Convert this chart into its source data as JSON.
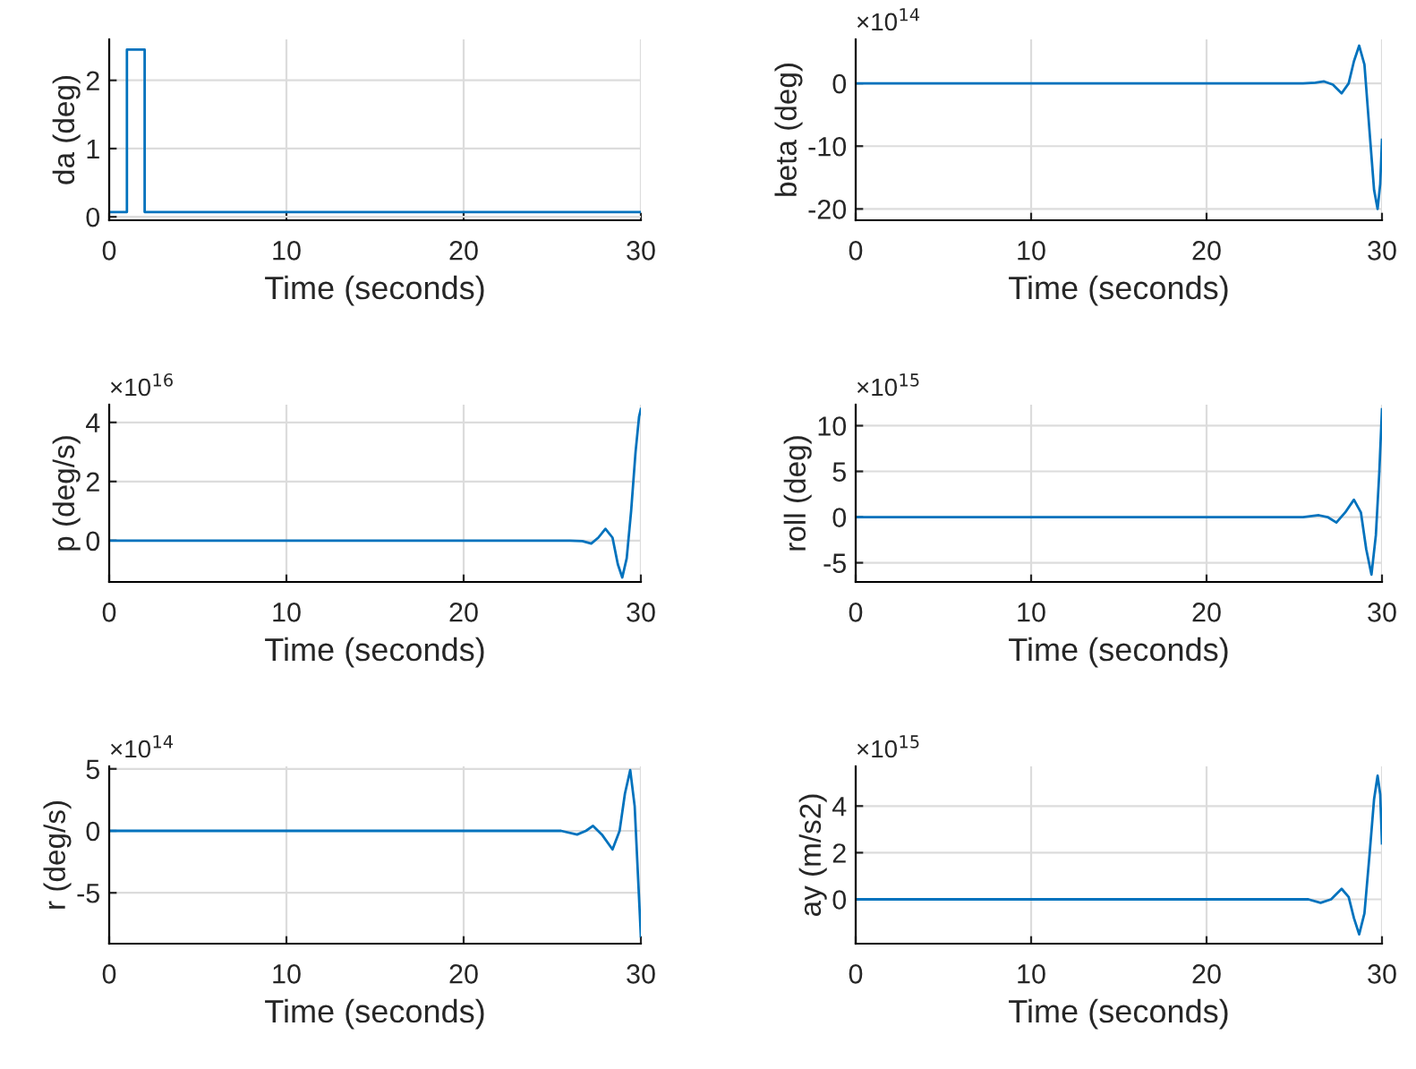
{
  "chart_data": [
    {
      "type": "line",
      "xlabel": "Time (seconds)",
      "ylabel": "da (deg)",
      "xlim": [
        0,
        30
      ],
      "xticks": [
        0,
        10,
        20,
        30
      ],
      "ylim": [
        -0.05,
        2.6
      ],
      "yticks": [
        0,
        1,
        2
      ],
      "grid": true,
      "x": [
        0,
        1,
        1,
        2,
        2,
        30
      ],
      "series": [
        {
          "color": "#0072bd",
          "values": [
            0.07,
            0.07,
            2.45,
            2.45,
            0.07,
            0.07
          ]
        }
      ]
    },
    {
      "type": "line",
      "xlabel": "Time (seconds)",
      "ylabel": "beta (deg)",
      "xlim": [
        0,
        30
      ],
      "xticks": [
        0,
        10,
        20,
        30
      ],
      "ylim": [
        -21.8,
        7
      ],
      "yticks": [
        -20,
        -10,
        0
      ],
      "grid": true,
      "annotations": [
        "×10$^{14}$"
      ],
      "x": [
        0,
        25.5,
        26.2,
        26.7,
        27.2,
        27.7,
        28.1,
        28.4,
        28.7,
        29.0,
        29.3,
        29.55,
        29.75,
        29.9,
        30
      ],
      "series": [
        {
          "color": "#0072bd",
          "values": [
            0,
            0,
            0.1,
            0.3,
            -0.2,
            -1.6,
            0,
            3.5,
            6,
            3,
            -8,
            -17,
            -20,
            -16,
            -9
          ]
        }
      ]
    },
    {
      "type": "line",
      "xlabel": "Time (seconds)",
      "ylabel": "p (deg/s)",
      "xlim": [
        0,
        30
      ],
      "xticks": [
        0,
        10,
        20,
        30
      ],
      "ylim": [
        -1.4,
        4.6
      ],
      "yticks": [
        0,
        2,
        4
      ],
      "grid": true,
      "annotations": [
        "×10$^{16}$"
      ],
      "x": [
        0,
        26,
        26.7,
        27.2,
        27.6,
        28.0,
        28.4,
        28.7,
        28.95,
        29.2,
        29.45,
        29.7,
        29.9,
        30
      ],
      "series": [
        {
          "color": "#0072bd",
          "values": [
            0,
            0,
            -0.02,
            -0.1,
            0.1,
            0.4,
            0.1,
            -0.8,
            -1.25,
            -0.6,
            1.0,
            3.0,
            4.2,
            4.45
          ]
        }
      ]
    },
    {
      "type": "line",
      "xlabel": "Time (seconds)",
      "ylabel": "roll (deg)",
      "xlim": [
        0,
        30
      ],
      "xticks": [
        0,
        10,
        20,
        30
      ],
      "ylim": [
        -7.1,
        12.3
      ],
      "yticks": [
        -5,
        0,
        5,
        10
      ],
      "grid": true,
      "annotations": [
        "×10$^{15}$"
      ],
      "x": [
        0,
        25.5,
        26.4,
        26.9,
        27.4,
        27.9,
        28.4,
        28.8,
        29.1,
        29.4,
        29.65,
        29.85,
        30
      ],
      "series": [
        {
          "color": "#0072bd",
          "values": [
            0,
            0,
            0.2,
            0,
            -0.6,
            0.5,
            1.9,
            0.5,
            -3.5,
            -6.3,
            -2,
            5,
            11.8
          ]
        }
      ]
    },
    {
      "type": "line",
      "xlabel": "Time (seconds)",
      "ylabel": "r (deg/s)",
      "xlim": [
        0,
        30
      ],
      "xticks": [
        0,
        10,
        20,
        30
      ],
      "ylim": [
        -9.1,
        5.2
      ],
      "yticks": [
        -5,
        0,
        5
      ],
      "grid": true,
      "annotations": [
        "×10$^{14}$"
      ],
      "x": [
        0,
        25.5,
        26.4,
        26.9,
        27.3,
        27.8,
        28.4,
        28.8,
        29.1,
        29.4,
        29.65,
        29.85,
        30
      ],
      "series": [
        {
          "color": "#0072bd",
          "values": [
            0,
            0,
            -0.3,
            0,
            0.4,
            -0.3,
            -1.5,
            0,
            3,
            4.9,
            2,
            -4,
            -8.5
          ]
        }
      ]
    },
    {
      "type": "line",
      "xlabel": "Time (seconds)",
      "ylabel": "ay (m/s2)",
      "xlim": [
        0,
        30
      ],
      "xticks": [
        0,
        10,
        20,
        30
      ],
      "ylim": [
        -1.9,
        5.7
      ],
      "yticks": [
        0,
        2,
        4
      ],
      "grid": true,
      "annotations": [
        "×10$^{15}$"
      ],
      "x": [
        0,
        25.8,
        26.5,
        27.1,
        27.7,
        28.1,
        28.4,
        28.7,
        29.0,
        29.3,
        29.55,
        29.75,
        29.9,
        30
      ],
      "series": [
        {
          "color": "#0072bd",
          "values": [
            0,
            0,
            -0.15,
            0,
            0.45,
            0.1,
            -0.8,
            -1.5,
            -0.6,
            2,
            4.3,
            5.3,
            4.5,
            2.4
          ]
        }
      ]
    }
  ]
}
